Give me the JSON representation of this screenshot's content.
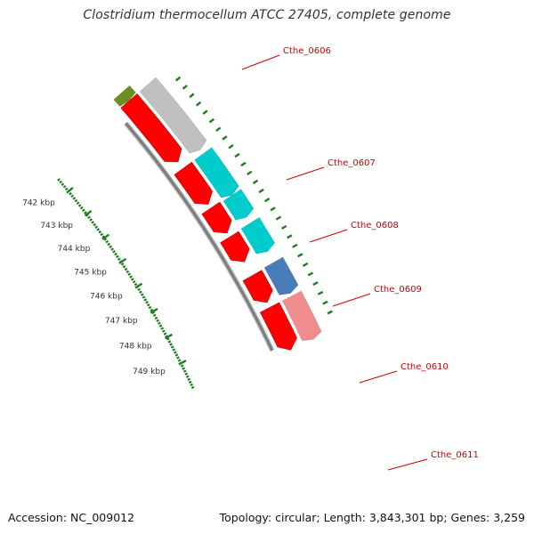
{
  "title": "Clostridium thermocellum ATCC 27405, complete genome",
  "footer": {
    "accession": "Accession: NC_009012",
    "summary": "Topology: circular; Length: 3,843,301 bp; Genes: 3,259"
  },
  "colors": {
    "background": "#ffffff",
    "backbone": "#7f7f7f",
    "cds": "#ff0000",
    "ruler": "#1e7d1e",
    "label_line": "#cc0000",
    "label_text": "#cc0000"
  },
  "ruler_ticks": [
    {
      "label": "742 kbp"
    },
    {
      "label": "743 kbp"
    },
    {
      "label": "744 kbp"
    },
    {
      "label": "745 kbp"
    },
    {
      "label": "746 kbp"
    },
    {
      "label": "747 kbp"
    },
    {
      "label": "748 kbp"
    },
    {
      "label": "749 kbp"
    }
  ],
  "genes": [
    {
      "label": "Cthe_0606",
      "color": "#c0c0c0"
    },
    {
      "label": "Cthe_0607",
      "color": "#00cccc"
    },
    {
      "label": "Cthe_0608",
      "color": "#00cccc"
    },
    {
      "label": "Cthe_0609",
      "color": "#00cccc"
    },
    {
      "label": "Cthe_0610",
      "color": "#4a7db8"
    },
    {
      "label": "Cthe_0611",
      "color": "#f08c8c"
    }
  ],
  "partial_gene_color": "#6b8e23"
}
